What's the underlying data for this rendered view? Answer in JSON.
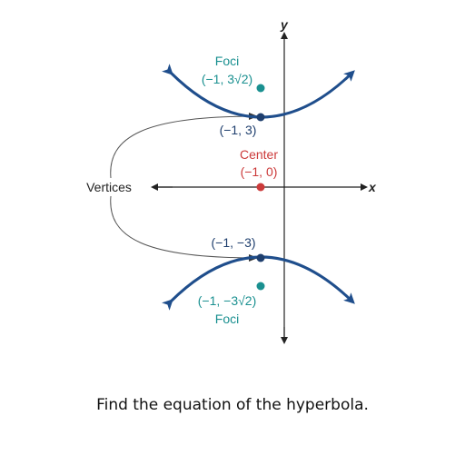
{
  "axes": {
    "x_label": "x",
    "y_label": "y"
  },
  "hyperbola": {
    "center": {
      "x": -1,
      "y": 0
    },
    "vertices": [
      {
        "x": -1,
        "y": 3
      },
      {
        "x": -1,
        "y": -3
      }
    ],
    "foci": [
      {
        "x": -1,
        "y": "3√2"
      },
      {
        "x": -1,
        "y": "-3√2"
      }
    ]
  },
  "labels": {
    "foci_top_title": "Foci",
    "foci_top_coords": "(−1, 3√2)",
    "vertex_top": "(−1, 3)",
    "center_title": "Center",
    "center_coords": "(−1, 0)",
    "vertices": "Vertices",
    "vertex_bottom": "(−1, −3)",
    "foci_bottom_coords": "(−1, −3√2)",
    "foci_bottom_title": "Foci"
  },
  "colors": {
    "curve": "#1f4e8c",
    "vertex_point": "#1f3f6e",
    "focus": "#1a9090",
    "center": "#cc3b3b",
    "axis": "#222222",
    "leader": "#555555"
  },
  "caption": "Find the equation of the hyperbola."
}
